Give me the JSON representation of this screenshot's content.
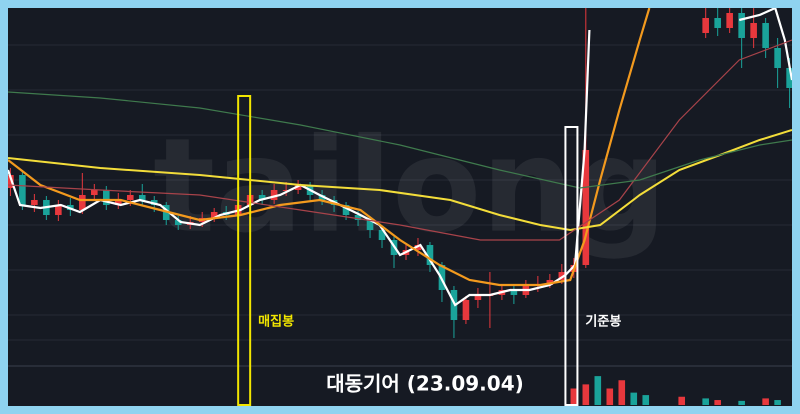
{
  "chart_data": {
    "type": "candlestick",
    "title": "대동기어 (23.09.04)",
    "watermark": "tailong",
    "annotations": [
      {
        "text": "매집봉",
        "x": 19.5,
        "color": "#f2e600"
      },
      {
        "text": "기준봉",
        "x": 46.8,
        "color": "#ffffff"
      }
    ],
    "xlim": [
      -0.2,
      65.2
    ],
    "ylim": [
      0,
      360
    ],
    "up_color": "#e8383d",
    "down_color": "#1aa39a",
    "x": [
      0,
      1,
      2,
      3,
      4,
      5,
      6,
      7,
      8,
      9,
      10,
      11,
      12,
      13,
      14,
      15,
      16,
      17,
      18,
      19,
      20,
      21,
      22,
      23,
      24,
      25,
      26,
      27,
      28,
      29,
      30,
      31,
      32,
      33,
      34,
      35,
      36,
      37,
      38,
      39,
      40,
      41,
      42,
      43,
      44,
      45,
      46,
      47,
      48,
      58,
      59,
      60,
      61,
      62,
      63,
      64,
      65
    ],
    "open": [
      180,
      193,
      163,
      168,
      153,
      163,
      158,
      173,
      178,
      163,
      168,
      173,
      168,
      163,
      148,
      143,
      146,
      150,
      156,
      153,
      163,
      173,
      168,
      178,
      178,
      183,
      173,
      168,
      163,
      153,
      148,
      138,
      128,
      113,
      118,
      123,
      103,
      78,
      48,
      68,
      73,
      73,
      78,
      73,
      83,
      83,
      88,
      96,
      103,
      335,
      350,
      340,
      355,
      330,
      345,
      320,
      300
    ],
    "high": [
      200,
      198,
      174,
      172,
      168,
      170,
      195,
      184,
      182,
      175,
      178,
      184,
      172,
      166,
      152,
      152,
      156,
      160,
      162,
      168,
      190,
      178,
      184,
      186,
      188,
      186,
      178,
      172,
      166,
      157,
      152,
      142,
      132,
      124,
      130,
      126,
      106,
      82,
      72,
      80,
      96,
      84,
      82,
      88,
      92,
      94,
      104,
      110,
      360,
      360,
      360,
      360,
      360,
      360,
      350,
      330,
      310
    ],
    "low": [
      172,
      158,
      156,
      148,
      147,
      152,
      154,
      168,
      158,
      159,
      162,
      163,
      156,
      143,
      138,
      139,
      141,
      146,
      148,
      149,
      158,
      163,
      164,
      172,
      174,
      168,
      163,
      156,
      148,
      142,
      130,
      120,
      100,
      108,
      112,
      96,
      66,
      30,
      44,
      60,
      40,
      68,
      64,
      70,
      76,
      80,
      84,
      90,
      100,
      330,
      332,
      335,
      300,
      320,
      310,
      280,
      260
    ],
    "close": [
      193,
      163,
      168,
      153,
      163,
      158,
      173,
      178,
      163,
      168,
      173,
      168,
      163,
      148,
      143,
      146,
      150,
      156,
      153,
      163,
      173,
      168,
      178,
      178,
      183,
      173,
      168,
      163,
      153,
      148,
      138,
      128,
      113,
      118,
      123,
      103,
      78,
      48,
      68,
      73,
      73,
      78,
      73,
      83,
      83,
      88,
      96,
      103,
      218,
      350,
      340,
      355,
      330,
      345,
      320,
      300,
      280
    ],
    "lines": [
      {
        "color": "#ffffff",
        "width": 2.2,
        "x": [
          -0.2,
          0.8,
          2.5,
          4.2,
          5.8,
          7.5,
          9.2,
          10.8,
          12.5,
          14.2,
          15.8,
          17.5,
          19.2,
          20.8,
          22.5,
          24.2,
          25.8,
          27.5,
          29.2,
          30.8,
          32.5,
          34.2,
          35.8,
          37.1,
          38.3,
          40,
          41.7,
          43.3,
          45,
          46.3,
          47.1,
          47.9,
          48.3,
          53,
          60.8,
          62.5,
          63.8,
          64.6,
          65.2
        ],
        "values": [
          198,
          163,
          160,
          163,
          156,
          168,
          163,
          168,
          163,
          146,
          143,
          153,
          158,
          168,
          173,
          183,
          173,
          163,
          153,
          143,
          113,
          123,
          93,
          63,
          73,
          73,
          78,
          78,
          83,
          93,
          103,
          218,
          338,
          null,
          348,
          353,
          360,
          328,
          288
        ]
      },
      {
        "color": "#f39a1e",
        "width": 2.2,
        "x": [
          -0.2,
          2.5,
          5.8,
          9.2,
          12.5,
          15.8,
          19.2,
          22.5,
          25.8,
          29.2,
          32.5,
          35.8,
          38.3,
          40.8,
          44.2,
          46.7,
          47.9,
          49.2,
          50.8,
          52.5,
          53.3
        ],
        "values": [
          208,
          183,
          168,
          168,
          158,
          148,
          153,
          163,
          168,
          158,
          128,
          103,
          88,
          83,
          83,
          88,
          128,
          188,
          258,
          328,
          360
        ]
      },
      {
        "color": "#f3dd3a",
        "width": 2,
        "x": [
          -0.2,
          7.5,
          15.8,
          24.2,
          30.8,
          36.7,
          40.8,
          44.2,
          46.7,
          49.2,
          52.5,
          55.8,
          59.2,
          62.5,
          65.2
        ],
        "values": [
          210,
          200,
          193,
          183,
          178,
          168,
          153,
          143,
          138,
          143,
          173,
          198,
          213,
          228,
          238
        ]
      },
      {
        "color": "#a8434a",
        "width": 1.2,
        "x": [
          -0.2,
          7.5,
          15.8,
          24.2,
          32.5,
          39.2,
          45.8,
          50.8,
          55.8,
          60.8,
          65.2
        ],
        "values": [
          183,
          178,
          173,
          158,
          143,
          128,
          128,
          168,
          248,
          308,
          328
        ]
      },
      {
        "color": "#3f7a4d",
        "width": 1.2,
        "x": [
          -0.2,
          7.5,
          15.8,
          24.2,
          32.5,
          40.8,
          47.5,
          52.5,
          57.5,
          62.5,
          65.2
        ],
        "values": [
          276,
          270,
          260,
          243,
          223,
          198,
          180,
          188,
          208,
          223,
          228
        ]
      }
    ],
    "volume": {
      "ylim": [
        0,
        40
      ],
      "x": [
        47,
        48,
        49,
        50,
        51,
        52,
        53,
        56,
        58,
        59,
        61,
        63,
        64
      ],
      "values": [
        20,
        25,
        35,
        20,
        30,
        15,
        12,
        10,
        8,
        6,
        5,
        8,
        6
      ],
      "colors": [
        "#e8383d",
        "#e8383d",
        "#1aa39a",
        "#e8383d",
        "#e8383d",
        "#1aa39a",
        "#1aa39a",
        "#e8383d",
        "#1aa39a",
        "#e8383d",
        "#1aa39a",
        "#e8383d",
        "#1aa39a"
      ]
    }
  }
}
